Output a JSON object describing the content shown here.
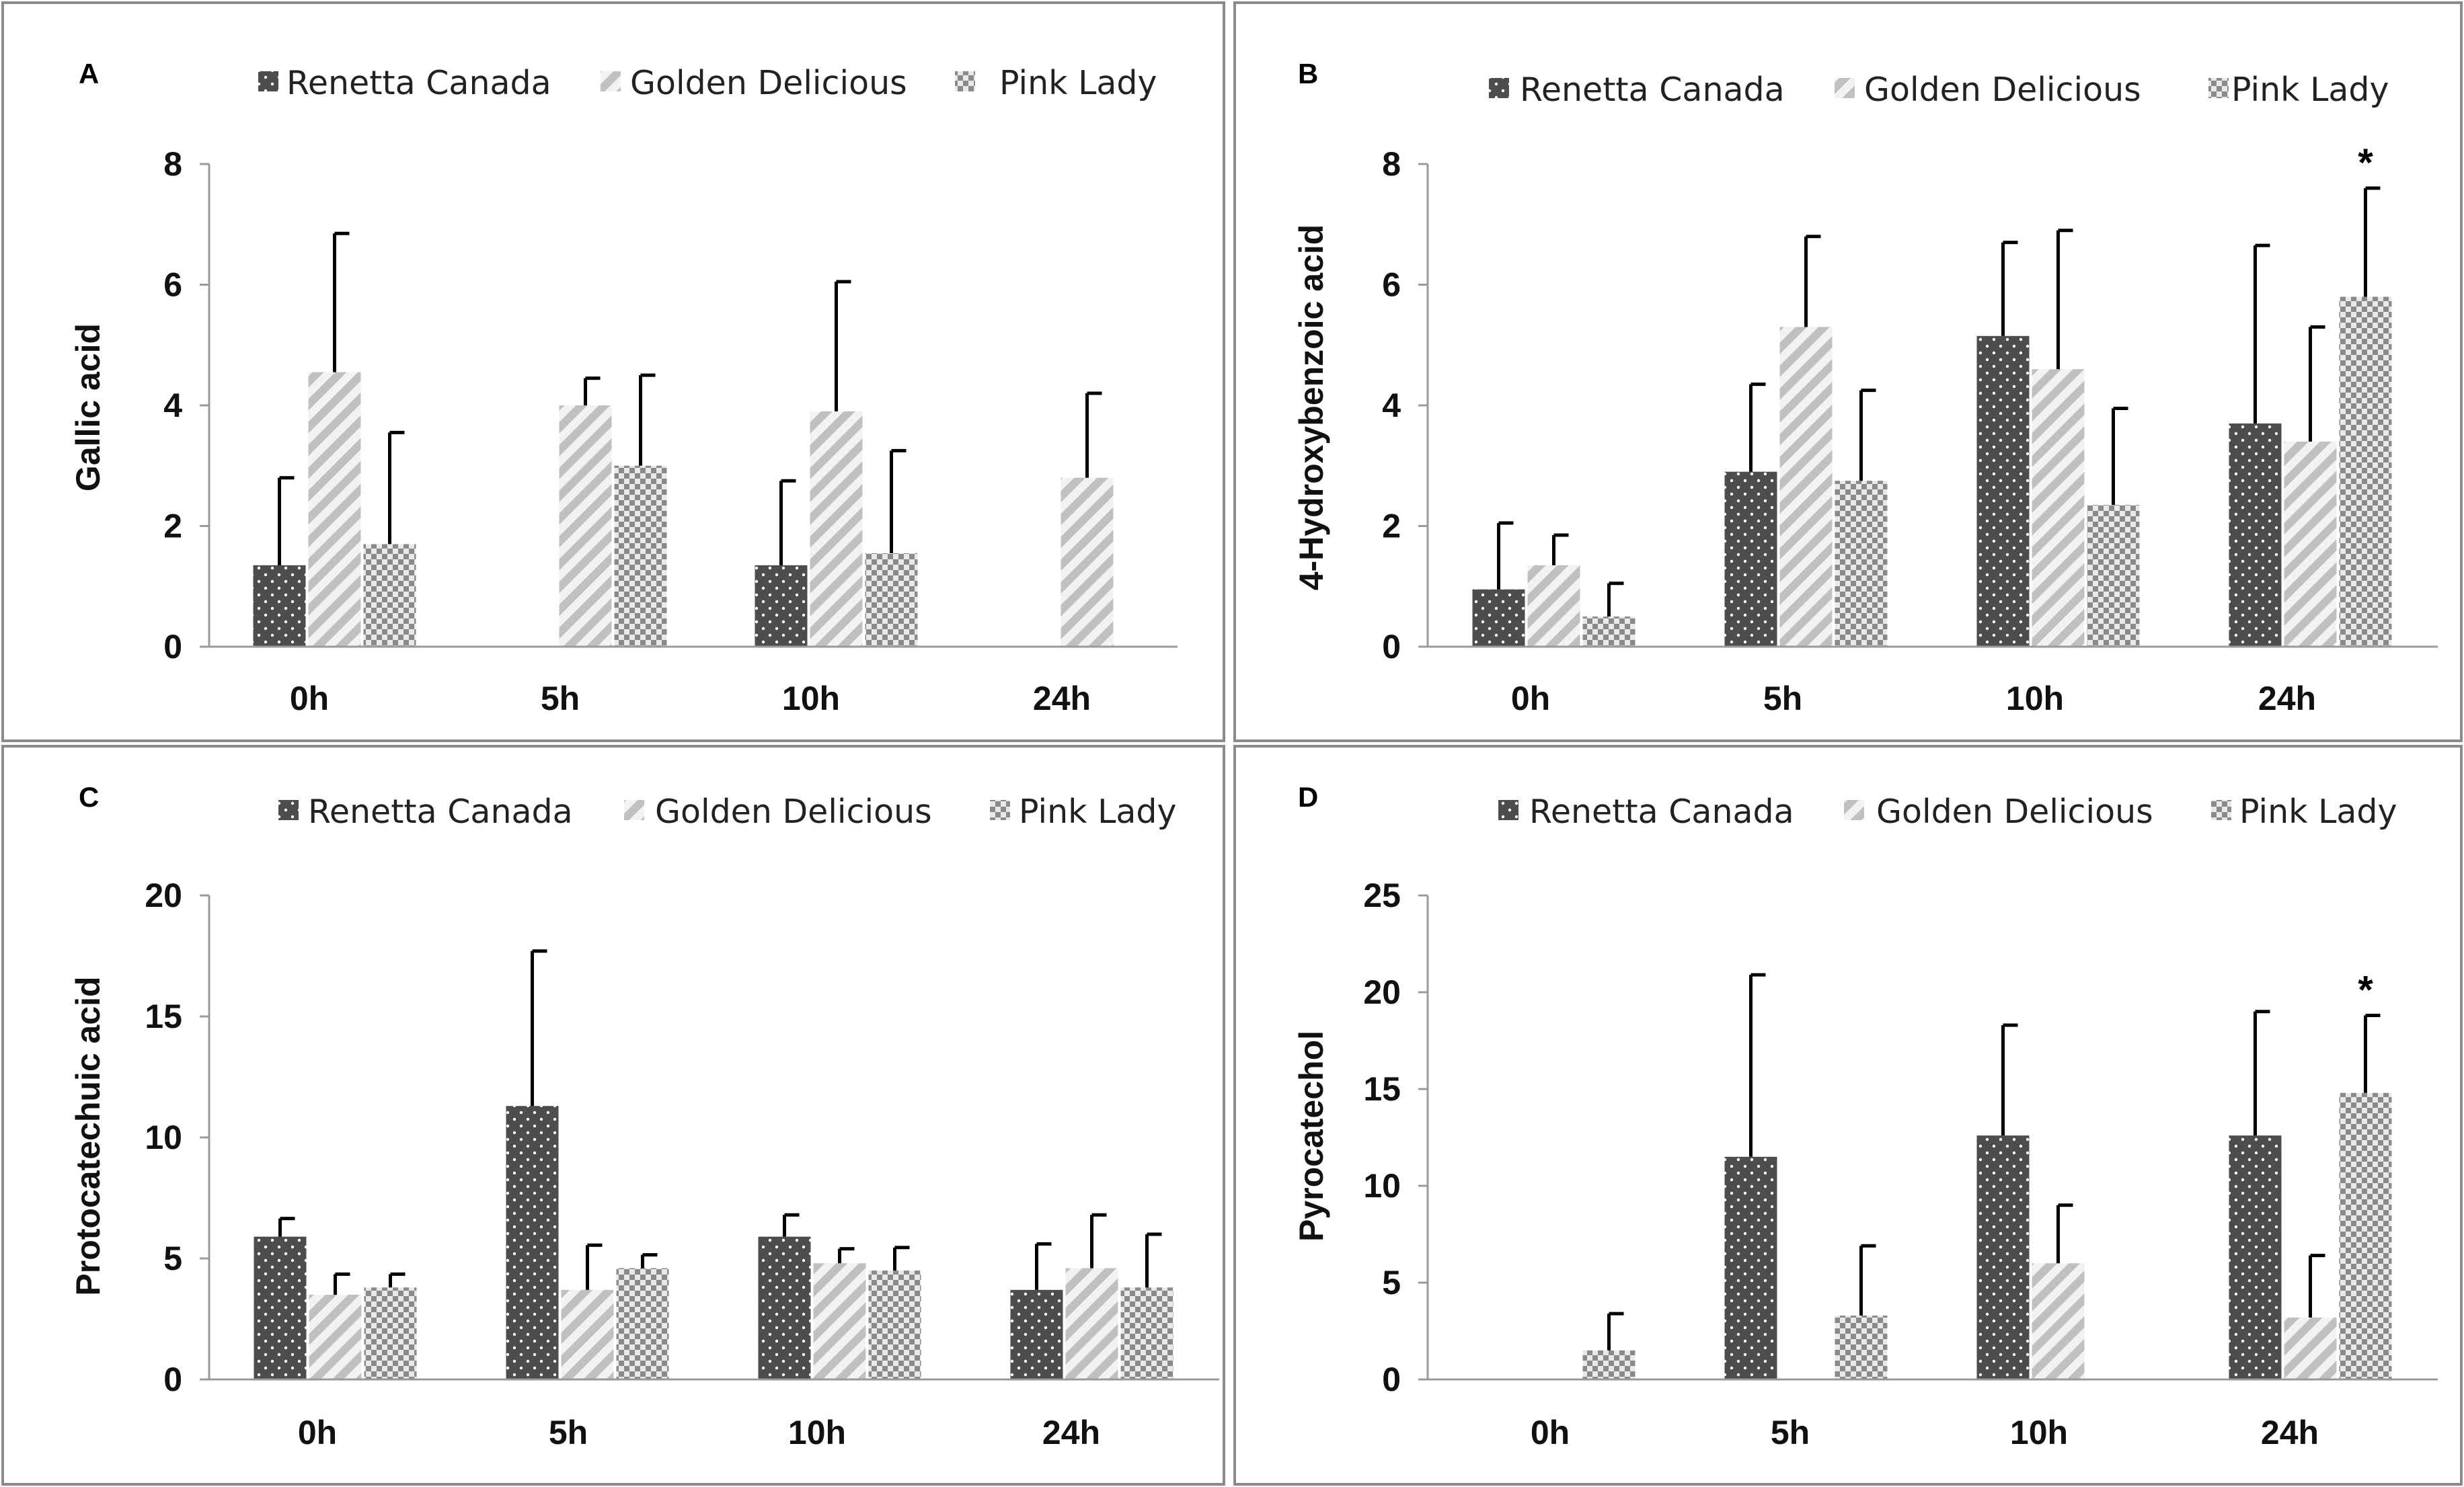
{
  "figure": {
    "colors": {
      "renetta": "#4d4d4d",
      "golden": "#c8c8c8",
      "golden_bg": "#f2f2f2",
      "pink": "#8c8c8c",
      "pink_bg": "#e8e8e8",
      "errorbar": "#000000",
      "border": "#8c8c8c"
    }
  },
  "chart_data": [
    {
      "panel": "A",
      "type": "bar",
      "title": "",
      "ylabel": "Gallic acid",
      "xlabel": "",
      "ylim": [
        0,
        8
      ],
      "yticks": [
        0,
        2,
        4,
        6,
        8
      ],
      "categories": [
        "0h",
        "5h",
        "10h",
        "24h"
      ],
      "legend": [
        "Renetta Canada",
        "Golden Delicious",
        "Pink Lady"
      ],
      "series": [
        {
          "name": "Renetta Canada",
          "values": [
            1.35,
            null,
            1.35,
            null
          ],
          "errors": [
            1.45,
            null,
            1.4,
            null
          ]
        },
        {
          "name": "Golden Delicious",
          "values": [
            4.55,
            4.0,
            3.9,
            2.8
          ],
          "errors": [
            2.3,
            0.45,
            2.15,
            1.4
          ]
        },
        {
          "name": "Pink Lady",
          "values": [
            1.7,
            3.0,
            1.55,
            null
          ],
          "errors": [
            1.85,
            1.5,
            1.7,
            null
          ]
        }
      ],
      "annotations": []
    },
    {
      "panel": "B",
      "type": "bar",
      "title": "",
      "ylabel": "4-Hydroxybenzoic acid",
      "xlabel": "",
      "ylim": [
        0,
        8
      ],
      "yticks": [
        0,
        2,
        4,
        6,
        8
      ],
      "categories": [
        "0h",
        "5h",
        "10h",
        "24h"
      ],
      "legend": [
        "Renetta Canada",
        "Golden Delicious",
        "Pink Lady"
      ],
      "series": [
        {
          "name": "Renetta Canada",
          "values": [
            0.95,
            2.9,
            5.15,
            3.7
          ],
          "errors": [
            1.1,
            1.45,
            1.55,
            2.95
          ]
        },
        {
          "name": "Golden Delicious",
          "values": [
            1.35,
            5.3,
            4.6,
            3.4
          ],
          "errors": [
            0.5,
            1.5,
            2.3,
            1.9
          ]
        },
        {
          "name": "Pink Lady",
          "values": [
            0.5,
            2.75,
            2.35,
            5.8
          ],
          "errors": [
            0.55,
            1.5,
            1.6,
            1.8
          ]
        }
      ],
      "annotations": [
        {
          "text": "*",
          "category": "24h",
          "series": "Pink Lady"
        }
      ]
    },
    {
      "panel": "C",
      "type": "bar",
      "title": "",
      "ylabel": "Protocatechuic  acid",
      "xlabel": "",
      "ylim": [
        0,
        20
      ],
      "yticks": [
        0,
        5,
        10,
        15,
        20
      ],
      "categories": [
        "0h",
        "5h",
        "10h",
        "24h"
      ],
      "legend": [
        "Renetta Canada",
        "Golden Delicious",
        "Pink Lady"
      ],
      "series": [
        {
          "name": "Renetta Canada",
          "values": [
            5.9,
            11.3,
            5.9,
            3.7
          ],
          "errors": [
            0.75,
            6.4,
            0.9,
            1.9
          ]
        },
        {
          "name": "Golden Delicious",
          "values": [
            3.5,
            3.7,
            4.8,
            4.6
          ],
          "errors": [
            0.85,
            1.85,
            0.6,
            2.2
          ]
        },
        {
          "name": "Pink Lady",
          "values": [
            3.8,
            4.6,
            4.5,
            3.8
          ],
          "errors": [
            0.55,
            0.55,
            0.95,
            2.2
          ]
        }
      ],
      "annotations": []
    },
    {
      "panel": "D",
      "type": "bar",
      "title": "",
      "ylabel": "Pyrocatechol",
      "xlabel": "",
      "ylim": [
        0,
        25
      ],
      "yticks": [
        0,
        5,
        10,
        15,
        20,
        25
      ],
      "categories": [
        "0h",
        "5h",
        "10h",
        "24h"
      ],
      "legend": [
        "Renetta Canada",
        "Golden Delicious",
        "Pink Lady"
      ],
      "series": [
        {
          "name": "Renetta Canada",
          "values": [
            null,
            11.5,
            12.6,
            12.6
          ],
          "errors": [
            null,
            9.4,
            5.7,
            6.4
          ]
        },
        {
          "name": "Golden Delicious",
          "values": [
            null,
            null,
            6.0,
            3.2
          ],
          "errors": [
            null,
            null,
            3.0,
            3.2
          ]
        },
        {
          "name": "Pink Lady",
          "values": [
            1.5,
            3.3,
            null,
            14.8
          ],
          "errors": [
            1.9,
            3.6,
            null,
            4.0
          ]
        }
      ],
      "annotations": [
        {
          "text": "*",
          "category": "24h",
          "series": "Pink Lady"
        }
      ]
    }
  ]
}
